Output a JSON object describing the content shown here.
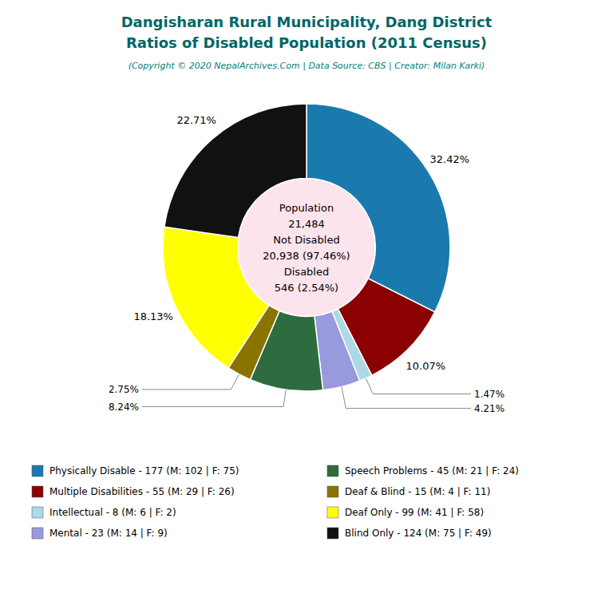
{
  "chart_data": {
    "type": "pie",
    "title": [
      "Dangisharan Rural Municipality, Dang District",
      "Ratios of Disabled Population (2011 Census)"
    ],
    "subtitle": "(Copyright © 2020 NepalArchives.Com | Data Source: CBS | Creator: Milan Karki)",
    "categories": [
      "Physically Disable - 177 (M: 102 | F: 75)",
      "Multiple Disabilities - 55 (M: 29 | F: 26)",
      "Intellectual - 8 (M: 6 | F: 2)",
      "Mental - 23 (M: 14 | F: 9)",
      "Speech Problems - 45 (M: 21 | F: 24)",
      "Deaf & Blind - 15 (M: 4 | F: 11)",
      "Deaf Only - 99 (M: 41 | F: 58)",
      "Blind Only - 124 (M: 75 | F: 49)"
    ],
    "values": [
      32.42,
      10.07,
      1.47,
      4.21,
      8.24,
      2.75,
      18.13,
      22.71
    ],
    "value_labels": [
      "32.42%",
      "10.07%",
      "1.47%",
      "4.21%",
      "8.24%",
      "2.75%",
      "18.13%",
      "22.71%"
    ],
    "colors": [
      "#1a7aad",
      "#8b0000",
      "#add8e6",
      "#9999dd",
      "#2e6b3e",
      "#8b7300",
      "#ffff00",
      "#111111"
    ],
    "annotations": [
      "Population",
      "21,484",
      "Not Disabled",
      "20,938 (97.46%)",
      "Disabled",
      "546 (2.54%)"
    ],
    "data_labels": true,
    "legend": "bottom"
  }
}
